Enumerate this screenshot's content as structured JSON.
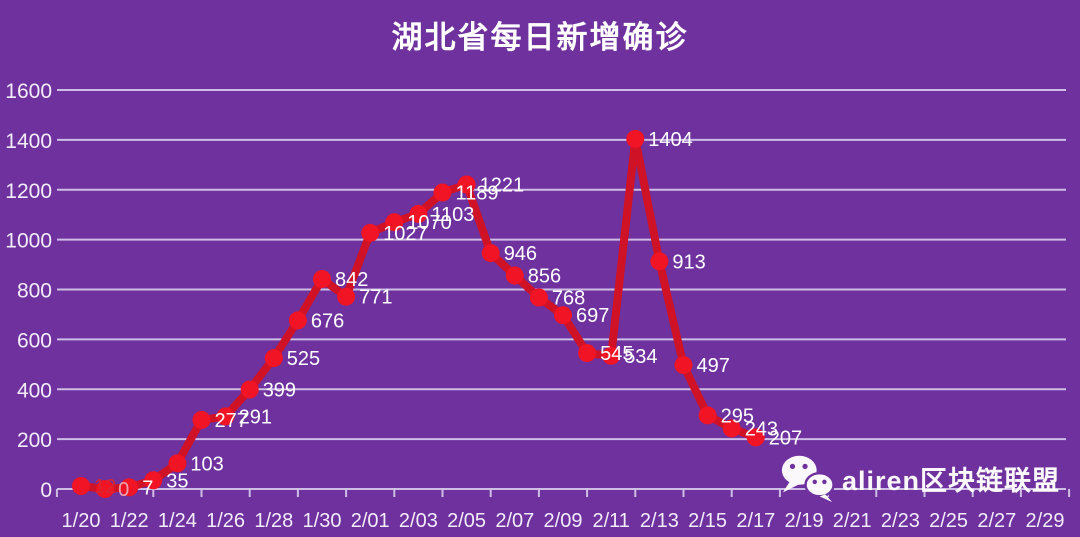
{
  "title": "湖北省每日新增确诊",
  "watermark": {
    "icon": "wechat-icon",
    "text": "aliren区块链联盟"
  },
  "colors": {
    "background": "#6E319E",
    "grid": "#D9CDEC",
    "axis_text": "#F3EDFA",
    "label_text": "#FFFFFF",
    "line": "#CF1225",
    "marker": "#F01424",
    "label_overrides": {
      "0": "#DC2533",
      "1": "#ECA3AC"
    }
  },
  "chart_data": {
    "type": "line",
    "title": "湖北省每日新增确诊",
    "x": [
      "1/20",
      "1/21",
      "1/22",
      "1/23",
      "1/24",
      "1/25",
      "1/26",
      "1/27",
      "1/28",
      "1/29",
      "1/30",
      "1/31",
      "2/01",
      "2/02",
      "2/03",
      "2/04",
      "2/05",
      "2/06",
      "2/07",
      "2/08",
      "2/09",
      "2/10",
      "2/11",
      "2/12",
      "2/13",
      "2/14",
      "2/15",
      "2/16",
      "2/17"
    ],
    "values": [
      12,
      0,
      7,
      35,
      103,
      277,
      291,
      399,
      525,
      676,
      842,
      771,
      1027,
      1070,
      1103,
      1189,
      1221,
      946,
      856,
      768,
      697,
      545,
      534,
      1404,
      913,
      497,
      295,
      243,
      207
    ],
    "x_tick_labels": [
      "1/20",
      "1/22",
      "1/24",
      "1/26",
      "1/28",
      "1/30",
      "2/01",
      "2/03",
      "2/05",
      "2/07",
      "2/09",
      "2/11",
      "2/13",
      "2/15",
      "2/17",
      "2/19",
      "2/21",
      "2/23",
      "2/25",
      "2/27",
      "2/29"
    ],
    "y_ticks": [
      0,
      200,
      400,
      600,
      800,
      1000,
      1200,
      1400,
      1600
    ],
    "ylim": [
      0,
      1600
    ],
    "xlabel": "",
    "ylabel": "",
    "grid": true,
    "legend": false,
    "data_labels": true
  }
}
